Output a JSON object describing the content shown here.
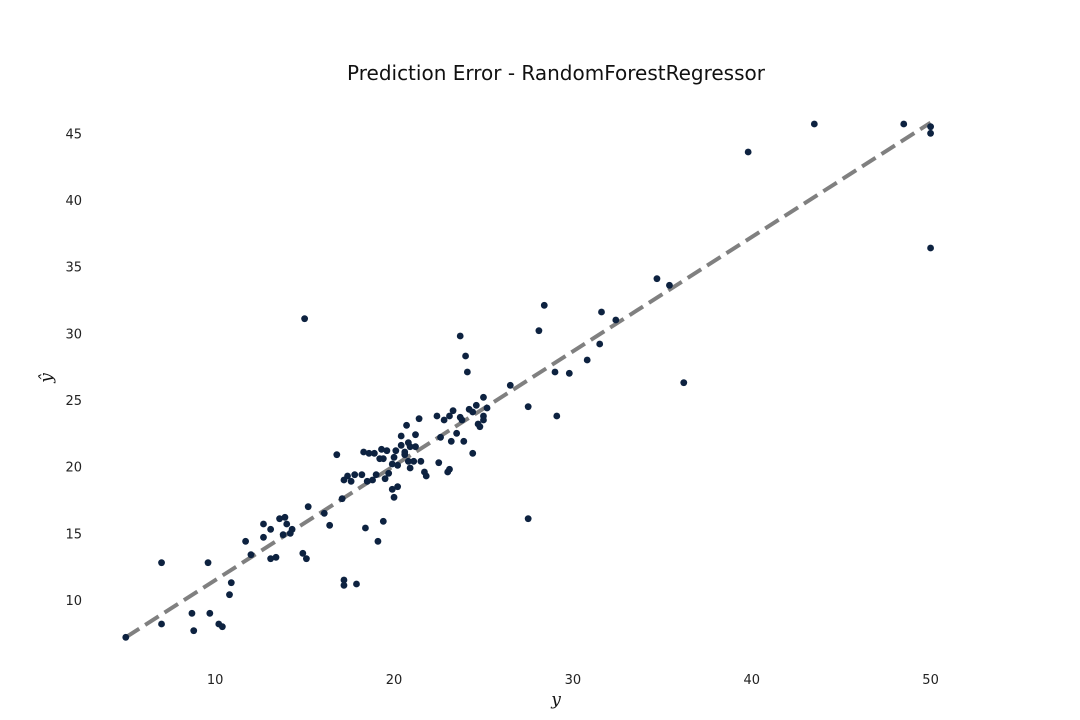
{
  "chart_data": {
    "type": "scatter",
    "title": "Prediction Error - RandomForestRegressor",
    "xlabel": "y",
    "ylabel": "ŷ",
    "xlim": [
      3,
      55
    ],
    "ylim": [
      5.5,
      47.5
    ],
    "xticks": [
      10,
      20,
      30,
      40,
      50
    ],
    "yticks": [
      10,
      15,
      20,
      25,
      30,
      35,
      40,
      45
    ],
    "grid": false,
    "point_color": "#0d2240",
    "reference_line": {
      "from": [
        5.0,
        7.2
      ],
      "to": [
        50.0,
        45.8
      ],
      "color": "#808080",
      "style": "dashed"
    },
    "points": [
      [
        5.0,
        7.2
      ],
      [
        7.0,
        12.8
      ],
      [
        7.0,
        8.2
      ],
      [
        8.7,
        9.0
      ],
      [
        8.8,
        7.7
      ],
      [
        9.6,
        12.8
      ],
      [
        9.7,
        9.0
      ],
      [
        10.2,
        8.2
      ],
      [
        10.4,
        8.0
      ],
      [
        10.8,
        10.4
      ],
      [
        10.9,
        11.3
      ],
      [
        11.7,
        14.4
      ],
      [
        12.0,
        13.4
      ],
      [
        12.7,
        15.7
      ],
      [
        12.7,
        14.7
      ],
      [
        13.1,
        13.1
      ],
      [
        13.1,
        15.3
      ],
      [
        13.4,
        13.2
      ],
      [
        13.6,
        16.1
      ],
      [
        13.8,
        14.9
      ],
      [
        13.9,
        16.2
      ],
      [
        14.0,
        15.7
      ],
      [
        14.2,
        15.0
      ],
      [
        14.3,
        15.3
      ],
      [
        14.9,
        13.5
      ],
      [
        15.0,
        31.1
      ],
      [
        15.1,
        13.1
      ],
      [
        15.2,
        17.0
      ],
      [
        16.1,
        16.5
      ],
      [
        16.4,
        15.6
      ],
      [
        16.8,
        20.9
      ],
      [
        17.1,
        17.6
      ],
      [
        17.2,
        11.5
      ],
      [
        17.2,
        11.1
      ],
      [
        17.2,
        19.0
      ],
      [
        17.4,
        19.3
      ],
      [
        17.6,
        18.9
      ],
      [
        17.8,
        19.4
      ],
      [
        17.9,
        11.2
      ],
      [
        18.2,
        19.4
      ],
      [
        18.3,
        21.1
      ],
      [
        18.4,
        15.4
      ],
      [
        18.5,
        18.9
      ],
      [
        18.6,
        21.0
      ],
      [
        18.8,
        19.0
      ],
      [
        18.9,
        21.0
      ],
      [
        19.0,
        19.4
      ],
      [
        19.1,
        14.4
      ],
      [
        19.2,
        20.6
      ],
      [
        19.3,
        21.3
      ],
      [
        19.4,
        20.6
      ],
      [
        19.4,
        15.9
      ],
      [
        19.5,
        19.1
      ],
      [
        19.6,
        21.2
      ],
      [
        19.7,
        19.5
      ],
      [
        19.9,
        18.3
      ],
      [
        19.9,
        20.2
      ],
      [
        20.0,
        17.7
      ],
      [
        20.0,
        20.7
      ],
      [
        20.1,
        21.2
      ],
      [
        20.2,
        20.1
      ],
      [
        20.2,
        18.5
      ],
      [
        20.4,
        22.3
      ],
      [
        20.4,
        21.6
      ],
      [
        20.6,
        21.1
      ],
      [
        20.6,
        20.9
      ],
      [
        20.7,
        23.1
      ],
      [
        20.8,
        20.4
      ],
      [
        20.8,
        21.8
      ],
      [
        20.9,
        21.5
      ],
      [
        20.9,
        19.9
      ],
      [
        21.1,
        20.4
      ],
      [
        21.2,
        22.4
      ],
      [
        21.2,
        21.5
      ],
      [
        21.4,
        23.6
      ],
      [
        21.5,
        20.4
      ],
      [
        21.7,
        19.6
      ],
      [
        21.8,
        19.3
      ],
      [
        22.4,
        23.8
      ],
      [
        22.5,
        20.3
      ],
      [
        22.6,
        22.2
      ],
      [
        22.8,
        23.5
      ],
      [
        23.0,
        19.6
      ],
      [
        23.1,
        19.8
      ],
      [
        23.1,
        23.8
      ],
      [
        23.2,
        21.9
      ],
      [
        23.3,
        24.2
      ],
      [
        23.5,
        22.5
      ],
      [
        23.7,
        23.7
      ],
      [
        23.7,
        29.8
      ],
      [
        23.8,
        23.5
      ],
      [
        23.9,
        21.9
      ],
      [
        24.0,
        28.3
      ],
      [
        24.1,
        27.1
      ],
      [
        24.2,
        24.3
      ],
      [
        24.4,
        21.0
      ],
      [
        24.4,
        24.1
      ],
      [
        24.6,
        24.6
      ],
      [
        24.7,
        23.2
      ],
      [
        24.8,
        23.0
      ],
      [
        25.0,
        25.2
      ],
      [
        25.0,
        23.8
      ],
      [
        25.0,
        23.5
      ],
      [
        25.2,
        24.4
      ],
      [
        26.5,
        26.1
      ],
      [
        27.5,
        24.5
      ],
      [
        27.5,
        16.1
      ],
      [
        28.1,
        30.2
      ],
      [
        28.4,
        32.1
      ],
      [
        29.0,
        27.1
      ],
      [
        29.1,
        23.8
      ],
      [
        29.8,
        27.0
      ],
      [
        30.8,
        28.0
      ],
      [
        31.5,
        29.2
      ],
      [
        31.6,
        31.6
      ],
      [
        32.4,
        31.0
      ],
      [
        34.7,
        34.1
      ],
      [
        35.4,
        33.6
      ],
      [
        36.2,
        26.3
      ],
      [
        39.8,
        43.6
      ],
      [
        43.5,
        45.7
      ],
      [
        48.5,
        45.7
      ],
      [
        50.0,
        45.5
      ],
      [
        50.0,
        45.0
      ],
      [
        50.0,
        36.4
      ]
    ]
  }
}
